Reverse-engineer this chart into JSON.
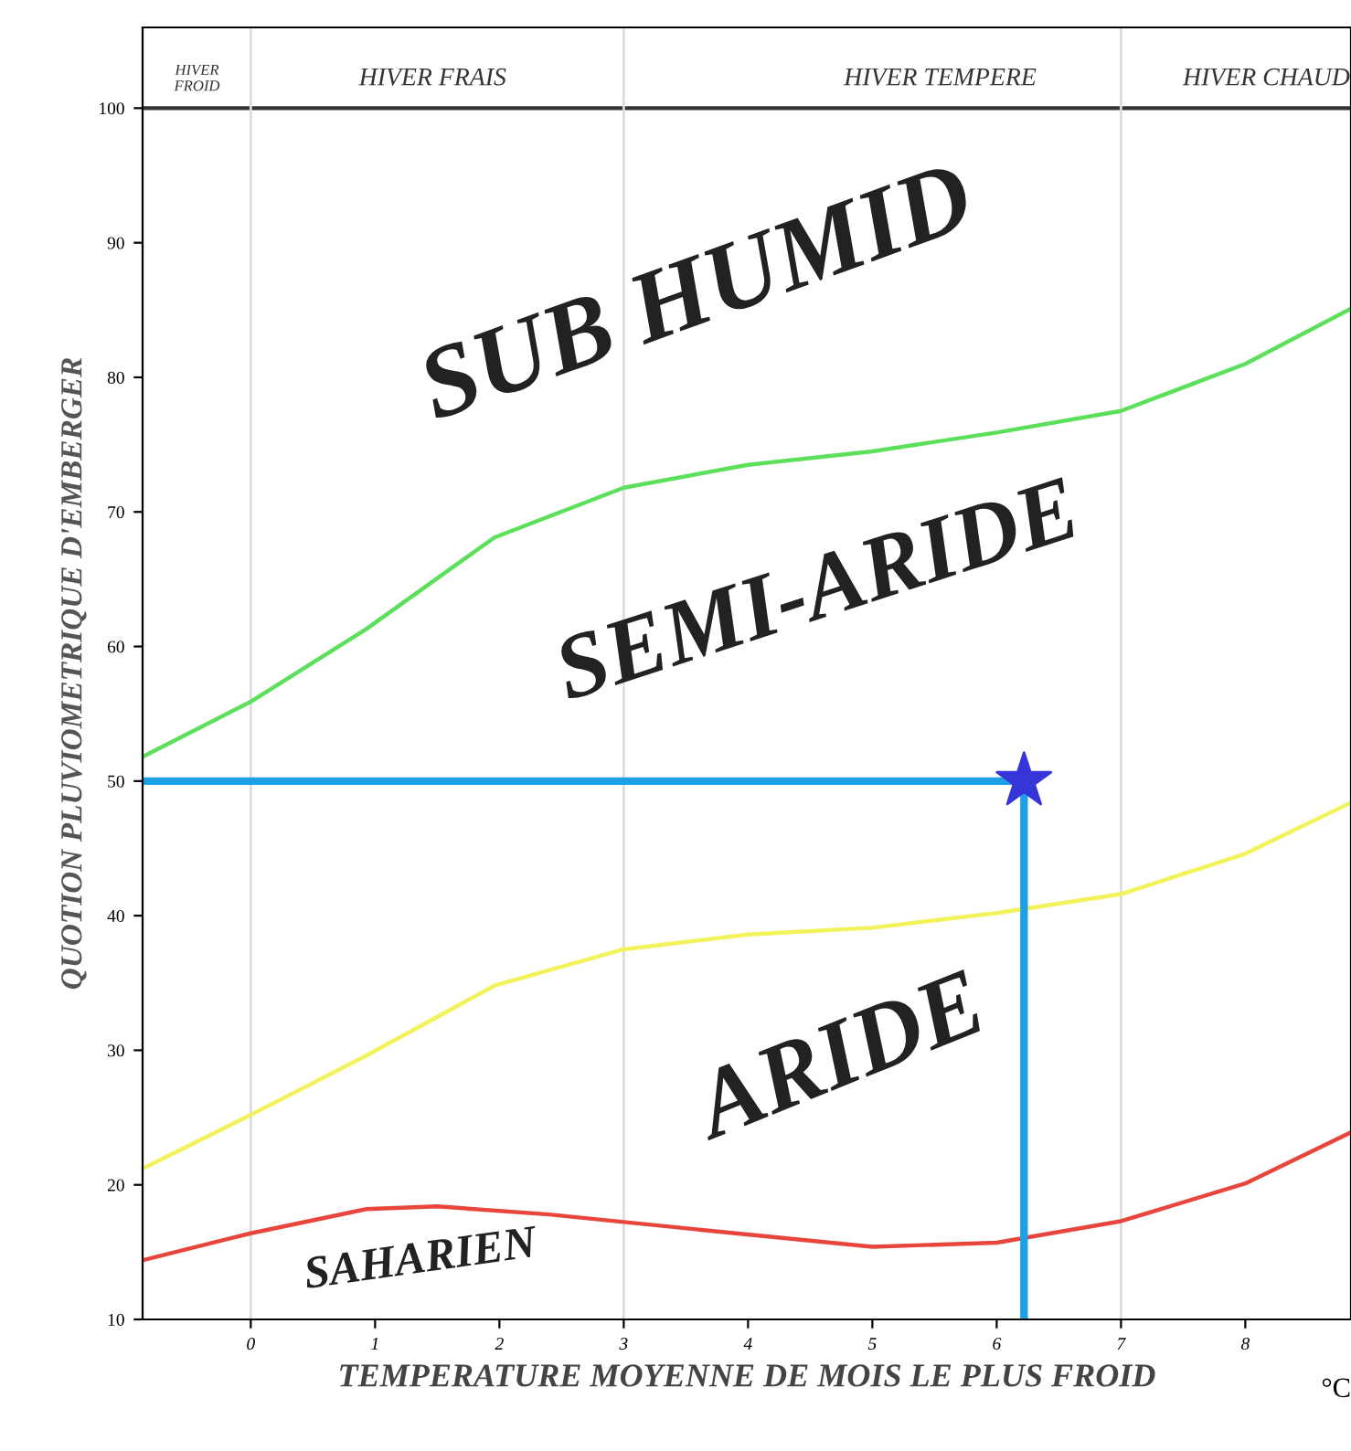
{
  "chart_data": {
    "type": "line",
    "xlabel": "TEMPERATURE MOYENNE DE MOIS LE PLUS FROID",
    "ylabel": "QUOTION PLUVIOMETRIQUE D'EMBERGER",
    "xlim": [
      -0.87,
      8.85
    ],
    "xticks": [
      0,
      1,
      2,
      3,
      4,
      5,
      6,
      7,
      8
    ],
    "ylim": [
      10,
      106
    ],
    "yticks": [
      10,
      20,
      30,
      40,
      50,
      60,
      70,
      80,
      90,
      100
    ],
    "grid": false,
    "legend": false,
    "series": [
      {
        "color": "#5ce05c",
        "x": [
          -0.87,
          0,
          0.93,
          1.96,
          3,
          4,
          5,
          6,
          7,
          8,
          8.85
        ],
        "values": [
          51.8,
          55.9,
          61.3,
          68.1,
          71.8,
          73.5,
          74.5,
          75.9,
          77.5,
          81,
          85.1
        ]
      },
      {
        "color": "#f2f25a",
        "x": [
          -0.87,
          0,
          0.93,
          1.96,
          3,
          4,
          5,
          6,
          7,
          8,
          8.85
        ],
        "values": [
          21.2,
          25.2,
          29.6,
          34.8,
          37.5,
          38.6,
          39.1,
          40.2,
          41.6,
          44.6,
          48.4
        ]
      },
      {
        "color": "#e8463c",
        "x": [
          -0.87,
          0,
          0.93,
          1.5,
          2.4,
          3.9,
          5,
          6,
          7,
          8,
          8.85
        ],
        "values": [
          14.4,
          16.4,
          18.2,
          18.4,
          17.8,
          16.4,
          15.4,
          15.7,
          17.3,
          20.1,
          23.9
        ]
      },
      {
        "color": "#1ea0e6",
        "x": [
          -0.87,
          6.22
        ],
        "values": [
          50,
          50
        ]
      },
      {
        "color": "#1ea0e6",
        "x": [
          6.22,
          6.22
        ],
        "values": [
          10,
          50
        ]
      },
      {
        "type": "scatter",
        "marker": "star",
        "color": "#3535d8",
        "x": [
          6.22
        ],
        "values": [
          50
        ]
      }
    ],
    "ref_lines": [
      {
        "axis": "y",
        "value": 100,
        "color": "#333333"
      },
      {
        "axis": "x",
        "value": 0,
        "color": "#dddddd"
      },
      {
        "axis": "x",
        "value": 3,
        "color": "#dddddd"
      },
      {
        "axis": "x",
        "value": 7,
        "color": "#dddddd"
      }
    ],
    "annotations": [
      "SUB HUMID",
      "SEMI-ARIDE",
      "ARIDE",
      "SAHARIEN",
      "HIVER\nFROID",
      "HIVER FRAIS",
      "HIVER TEMPERE",
      "HIVER CHAUD",
      "°C"
    ]
  }
}
